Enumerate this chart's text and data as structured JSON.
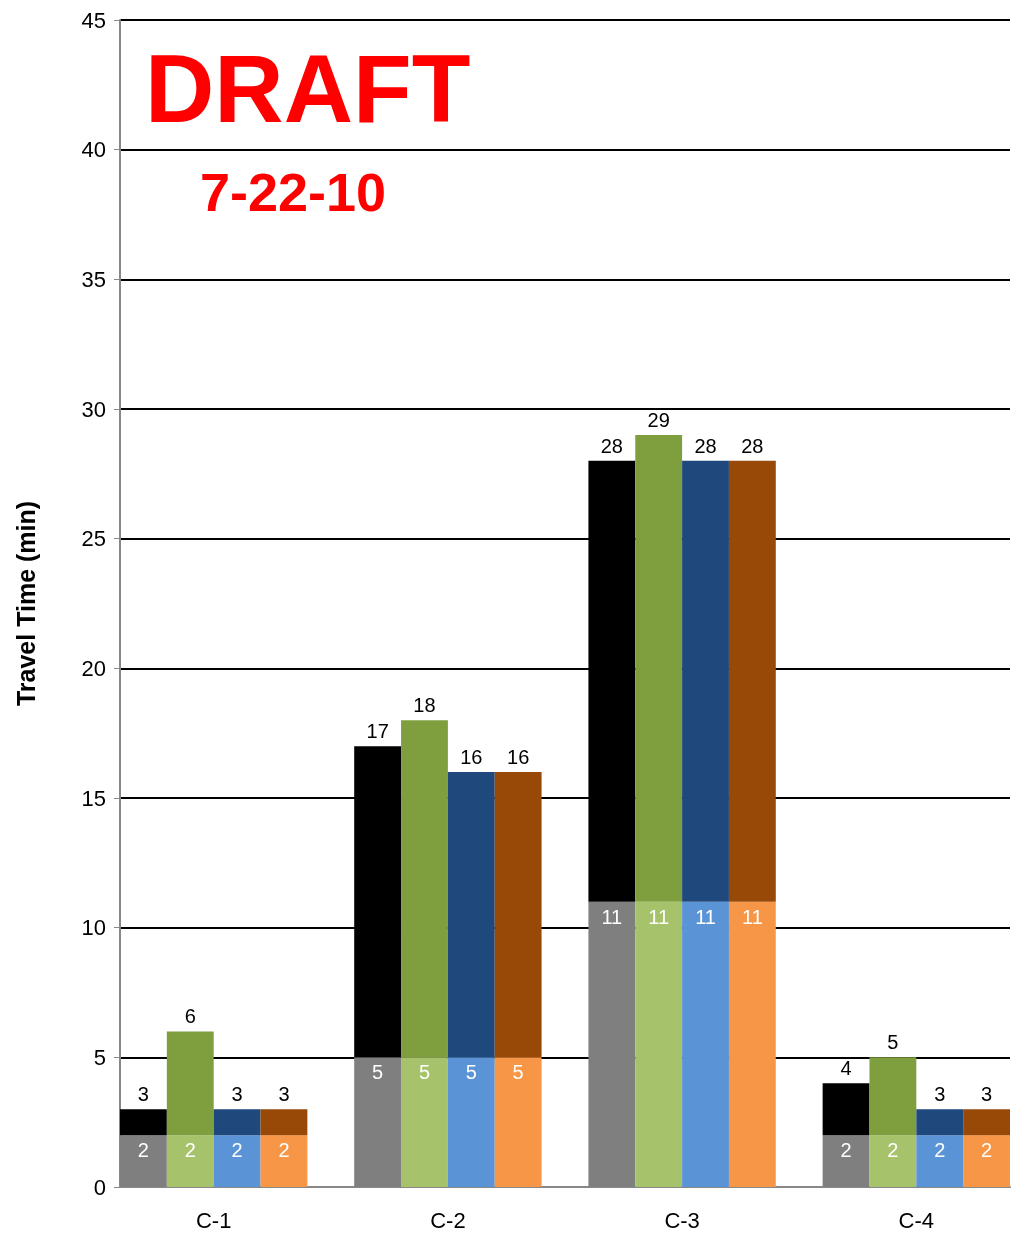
{
  "chart_data": {
    "type": "bar",
    "stacked": true,
    "ylabel": "Travel Time (min)",
    "categories": [
      null,
      null,
      null,
      null,
      null,
      null,
      null,
      null,
      null,
      null,
      null,
      null,
      null,
      null,
      null,
      null,
      null,
      null,
      null
    ],
    "series": [
      {
        "values": [
          2,
          2,
          2,
          2,
          null,
          5,
          5,
          5,
          5,
          null,
          11,
          11,
          11,
          11,
          null,
          2,
          2,
          2,
          2
        ],
        "value_labels": [
          "2",
          "2",
          "2",
          "2",
          null,
          "5",
          "5",
          "5",
          "5",
          null,
          "11",
          "11",
          "11",
          "11",
          null,
          "2",
          "2",
          "2",
          "2"
        ],
        "colors": [
          "#7f7f7f",
          "#a6c36b",
          "#5b94d6",
          "#f79646",
          null,
          "#7f7f7f",
          "#a6c36b",
          "#5b94d6",
          "#f79646",
          null,
          "#7f7f7f",
          "#a6c36b",
          "#5b94d6",
          "#f79646",
          null,
          "#7f7f7f",
          "#a6c36b",
          "#5b94d6",
          "#f79646"
        ]
      },
      {
        "values": [
          1,
          4,
          1,
          1,
          null,
          12,
          13,
          11,
          11,
          null,
          17,
          18,
          17,
          17,
          null,
          2,
          3,
          1,
          1
        ],
        "colors": [
          "#000000",
          "#7f9f3f",
          "#1f497d",
          "#984807",
          null,
          "#000000",
          "#7f9f3f",
          "#1f497d",
          "#984807",
          null,
          "#000000",
          "#7f9f3f",
          "#1f497d",
          "#984807",
          null,
          "#000000",
          "#7f9f3f",
          "#1f497d",
          "#984807"
        ]
      }
    ],
    "totals": [
      "3",
      "6",
      "3",
      "3",
      null,
      "17",
      "18",
      "16",
      "16",
      null,
      "28",
      "29",
      "28",
      "28",
      null,
      "4",
      "5",
      "3",
      "3"
    ],
    "ylim": [
      0,
      45
    ],
    "yticks": [
      0,
      5,
      10,
      15,
      20,
      25,
      30,
      35,
      40,
      45
    ],
    "grid": "y",
    "annotations": [
      "DRAFT",
      "7-22-10",
      "C-1",
      "C-2",
      "C-3",
      "C-4"
    ]
  }
}
